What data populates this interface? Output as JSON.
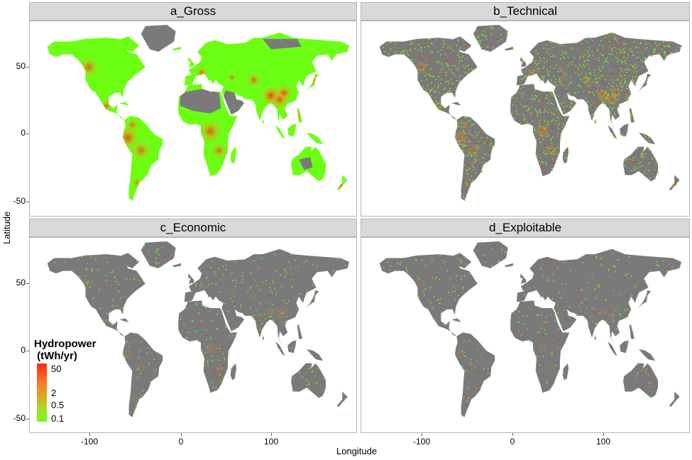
{
  "panels": [
    {
      "title": "a_Gross",
      "layer": "gross"
    },
    {
      "title": "b_Technical",
      "layer": "technical"
    },
    {
      "title": "c_Economic",
      "layer": "economic"
    },
    {
      "title": "d_Exploitable",
      "layer": "exploitable"
    }
  ],
  "axes": {
    "xlabel": "Longitude",
    "ylabel": "Latitude",
    "x_ticks": [
      "-100",
      "0",
      "100"
    ],
    "y_ticks": [
      "50",
      "0",
      "-50"
    ]
  },
  "legend": {
    "title": "Hydropower\n (tWh/yr)",
    "labels": [
      "50",
      "2",
      "0.5",
      "0.1"
    ]
  },
  "colors": {
    "land_no_data": "#7a7a7a",
    "low": "#6cff14",
    "mid": "#d5b020",
    "high": "#ff2a12",
    "strip": "#d9d9d9"
  }
}
